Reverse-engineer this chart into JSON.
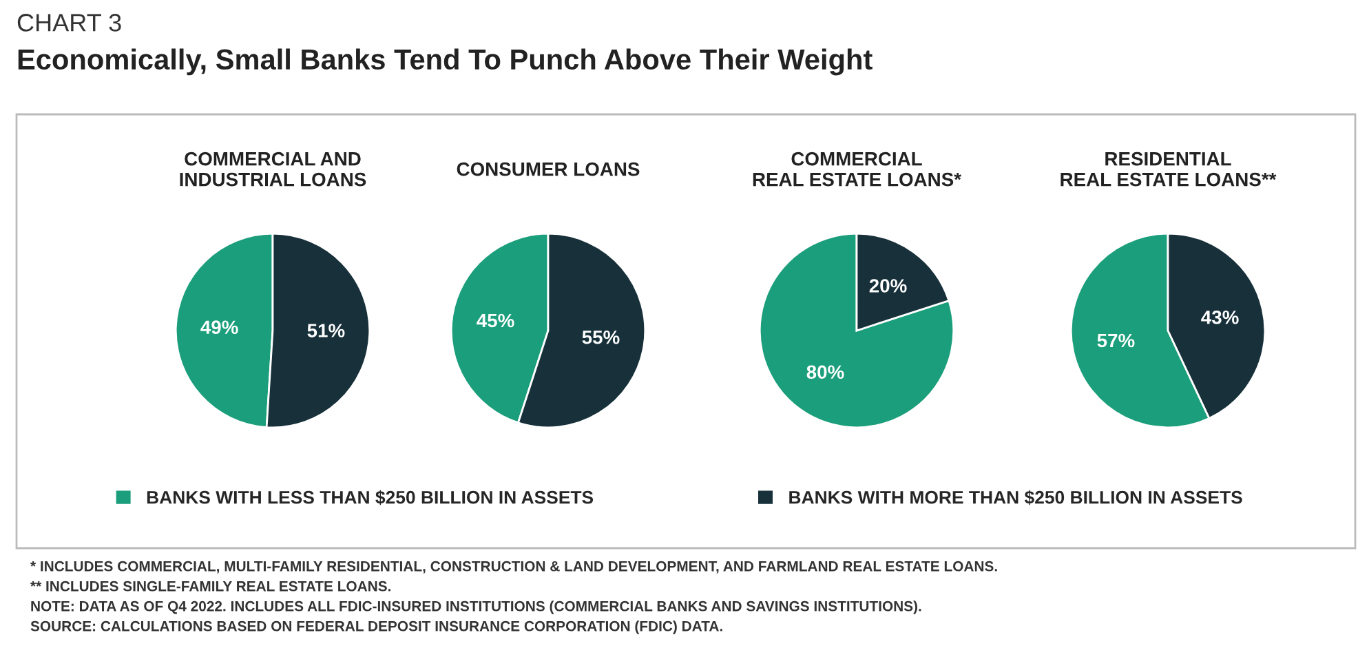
{
  "chart_data": [
    {
      "type": "other",
      "title": "Economically, Small Banks Tend To Punch Above Their Weight",
      "subtitle": "CHART 3",
      "annotations": [
        "* INCLUDES COMMERCIAL, MULTI-FAMILY RESIDENTIAL, CONSTRUCTION & LAND DEVELOPMENT, AND FARMLAND REAL ESTATE LOANS.",
        "** INCLUDES SINGLE-FAMILY REAL ESTATE LOANS.",
        "NOTE: DATA AS OF Q4 2022. INCLUDES ALL FDIC-INSURED INSTITUTIONS (COMMERCIAL BANKS AND SAVINGS INSTITUTIONS).",
        "SOURCE: CALCULATIONS BASED ON FEDERAL DEPOSIT INSURANCE CORPORATION (FDIC) DATA."
      ]
    },
    {
      "type": "pie",
      "title": "COMMERCIAL AND\nINDUSTRIAL LOANS",
      "categories": [
        "BANKS WITH LESS THAN $250 BILLION IN ASSETS",
        "BANKS WITH MORE THAN $250 BILLION IN ASSETS"
      ],
      "values": [
        49,
        51
      ],
      "value_labels": [
        "49%",
        "51%"
      ],
      "colors": [
        "#1b9e7b",
        "#17303a"
      ],
      "legend": "bottom"
    },
    {
      "type": "pie",
      "title": "CONSUMER LOANS",
      "categories": [
        null,
        null
      ],
      "values": [
        45,
        55
      ],
      "value_labels": [
        "45%",
        "55%"
      ],
      "colors": [
        "#1b9e7b",
        "#17303a"
      ]
    },
    {
      "type": "pie",
      "title": "COMMERCIAL\nREAL ESTATE LOANS*",
      "categories": [
        null,
        null
      ],
      "values": [
        80,
        20
      ],
      "value_labels": [
        "80%",
        "20%"
      ],
      "colors": [
        "#1b9e7b",
        "#17303a"
      ]
    },
    {
      "type": "pie",
      "title": "RESIDENTIAL\nREAL ESTATE LOANS**",
      "categories": [
        null,
        null
      ],
      "values": [
        57,
        43
      ],
      "value_labels": [
        "57%",
        "43%"
      ],
      "colors": [
        "#1b9e7b",
        "#17303a"
      ]
    }
  ]
}
